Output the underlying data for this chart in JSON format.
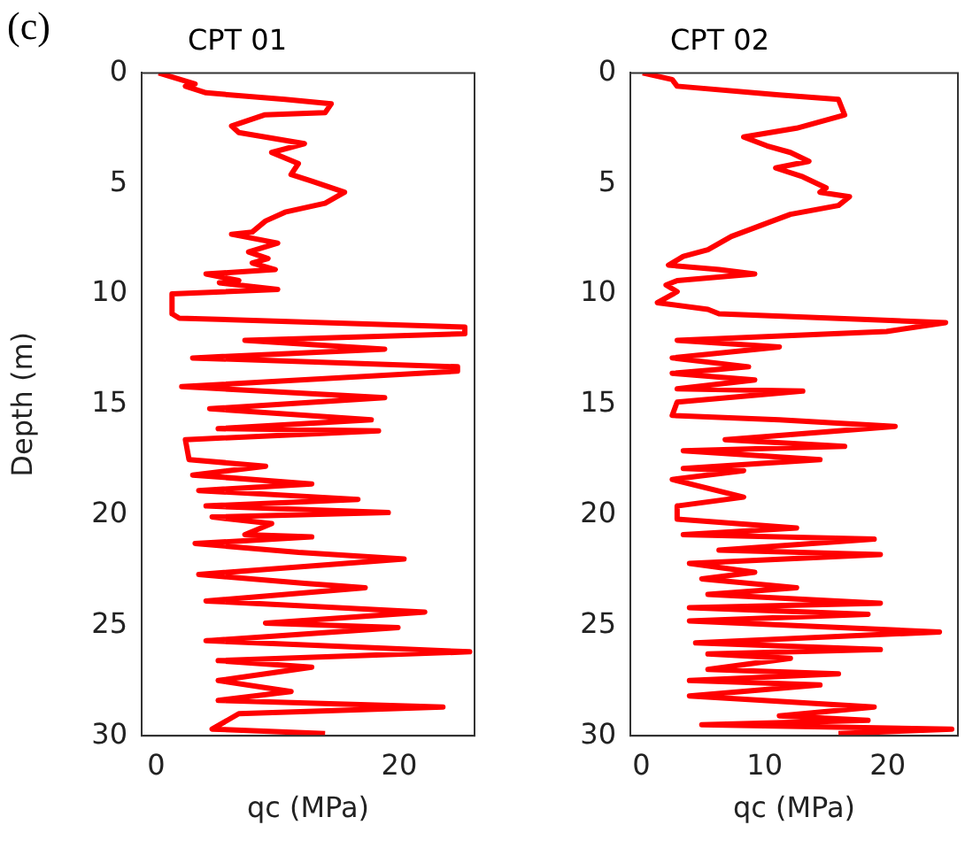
{
  "chart_data": [
    {
      "type": "line",
      "title": "CPT 01",
      "xlabel": "qc (MPa)",
      "ylabel": "Depth (m)",
      "annotations": [
        "(c)"
      ],
      "grid": false,
      "xlim": [
        -1.2,
        26.2
      ],
      "xticks": [
        0,
        20
      ],
      "ylim": [
        30,
        0
      ],
      "yticks": [
        0,
        5,
        10,
        15,
        20,
        25,
        30
      ],
      "series": [
        {
          "color": "#ff0000",
          "x": [
            0.2,
            3.2,
            2.4,
            4.1,
            10.6,
            14.4,
            13.9,
            8.9,
            6.2,
            6.8,
            11.1,
            12.2,
            9.5,
            11.7,
            11.1,
            12.8,
            15.5,
            13.9,
            10.6,
            9.0,
            7.9,
            6.2,
            10.0,
            7.6,
            9.2,
            7.9,
            9.8,
            4.1,
            6.8,
            5.2,
            10.0,
            1.3,
            1.3,
            1.9,
            25.4,
            25.4,
            7.3,
            18.8,
            3.0,
            24.8,
            24.8,
            2.1,
            18.8,
            4.4,
            17.7,
            5.1,
            18.3,
            2.4,
            2.7,
            9.0,
            3.0,
            12.8,
            3.5,
            16.6,
            4.1,
            19.1,
            4.6,
            9.5,
            7.3,
            12.8,
            3.2,
            11.7,
            20.4,
            3.5,
            12.2,
            17.2,
            4.1,
            22.1,
            9.0,
            19.9,
            4.1,
            25.8,
            5.1,
            12.8,
            5.1,
            11.1,
            5.1,
            23.6,
            6.8,
            4.6,
            13.9
          ],
          "values": [
            0,
            0.5,
            0.6,
            0.9,
            1.2,
            1.4,
            1.8,
            1.9,
            2.4,
            2.7,
            3.1,
            3.2,
            3.6,
            4.1,
            4.6,
            4.9,
            5.4,
            5.9,
            6.3,
            6.7,
            7.2,
            7.3,
            7.7,
            8.1,
            8.4,
            8.6,
            8.9,
            9.1,
            9.4,
            9.5,
            9.8,
            10.0,
            10.9,
            11.1,
            11.5,
            11.8,
            12.1,
            12.5,
            12.9,
            13.3,
            13.5,
            14.2,
            14.7,
            15.2,
            15.7,
            16.1,
            16.2,
            16.6,
            17.5,
            17.8,
            18.2,
            18.6,
            18.9,
            19.3,
            19.6,
            19.9,
            20.1,
            20.4,
            20.9,
            21.0,
            21.3,
            21.7,
            22.0,
            22.7,
            23.1,
            23.3,
            23.9,
            24.4,
            24.9,
            25.1,
            25.7,
            26.2,
            26.6,
            26.9,
            27.5,
            28.0,
            28.4,
            28.7,
            29.0,
            29.7,
            29.9
          ]
        }
      ]
    },
    {
      "type": "line",
      "title": "CPT 02",
      "xlabel": "qc (MPa)",
      "grid": false,
      "xlim": [
        -0.9,
        25.7
      ],
      "xticks": [
        0,
        10,
        20
      ],
      "ylim": [
        30,
        0
      ],
      "yticks": [
        0,
        5,
        10,
        15,
        20,
        25,
        30
      ],
      "series": [
        {
          "color": "#ff0000",
          "x": [
            0.1,
            2.5,
            2.9,
            11.2,
            16.0,
            16.5,
            12.6,
            8.3,
            10.2,
            12.1,
            13.6,
            10.9,
            13.1,
            15.0,
            14.5,
            16.9,
            16.0,
            12.1,
            9.7,
            7.3,
            5.4,
            3.4,
            2.2,
            6.3,
            9.2,
            2.9,
            2.0,
            2.9,
            1.3,
            5.4,
            6.3,
            24.7,
            19.9,
            2.9,
            11.2,
            2.5,
            8.7,
            2.5,
            9.2,
            2.9,
            13.1,
            2.9,
            2.5,
            11.2,
            20.6,
            6.8,
            16.5,
            3.4,
            14.5,
            3.4,
            8.3,
            2.5,
            8.3,
            2.9,
            2.9,
            12.6,
            3.4,
            18.9,
            6.3,
            19.4,
            3.9,
            9.2,
            4.9,
            12.6,
            5.4,
            19.4,
            3.9,
            18.4,
            3.9,
            24.2,
            4.4,
            19.4,
            5.4,
            12.1,
            5.4,
            16.0,
            3.9,
            14.5,
            3.9,
            18.9,
            11.2,
            18.4,
            4.9,
            25.2,
            16.0
          ],
          "values": [
            0,
            0.3,
            0.6,
            1.0,
            1.2,
            1.9,
            2.5,
            2.9,
            3.3,
            3.6,
            4.0,
            4.3,
            4.7,
            5.2,
            5.4,
            5.6,
            6.0,
            6.4,
            6.9,
            7.4,
            8.0,
            8.3,
            8.7,
            8.9,
            9.1,
            9.4,
            9.6,
            9.9,
            10.4,
            10.7,
            10.9,
            11.3,
            11.7,
            12.1,
            12.4,
            12.9,
            13.3,
            13.6,
            13.9,
            14.3,
            14.4,
            14.9,
            15.5,
            15.7,
            16.0,
            16.6,
            16.9,
            17.1,
            17.5,
            17.9,
            18.0,
            18.4,
            19.2,
            19.6,
            20.2,
            20.6,
            20.9,
            21.1,
            21.6,
            21.8,
            22.2,
            22.6,
            22.9,
            23.3,
            23.6,
            24.0,
            24.2,
            24.5,
            24.8,
            25.3,
            25.8,
            26.1,
            26.3,
            26.5,
            27.0,
            27.2,
            27.5,
            27.7,
            28.2,
            28.7,
            29.1,
            29.3,
            29.5,
            29.7,
            29.9
          ]
        }
      ]
    }
  ]
}
